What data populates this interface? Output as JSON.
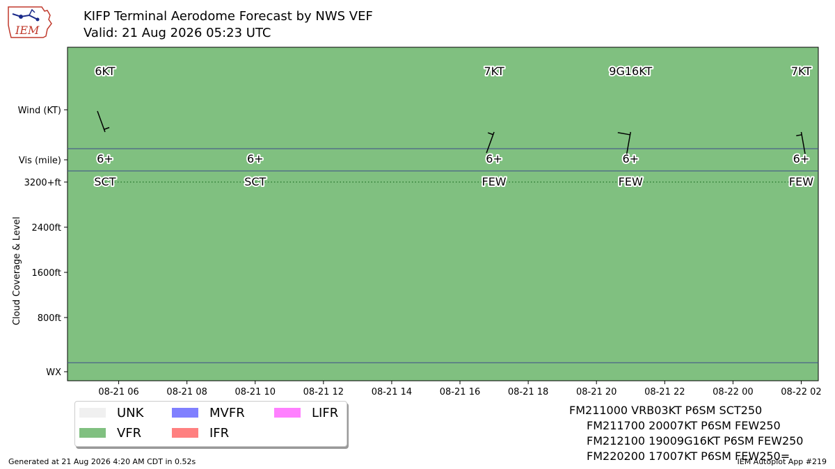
{
  "header": {
    "title": "KIFP Terminal Aerodome Forecast by NWS VEF",
    "valid": "Valid: 21 Aug 2026 05:23 UTC",
    "logo_text": "IEM"
  },
  "chart_data": {
    "type": "timeline",
    "colors": {
      "VFR": "#80c080",
      "UNK": "#f0f0f0",
      "MVFR": "#8080ff",
      "IFR": "#ff8080",
      "LIFR": "#ff80ff",
      "cloud_line": "#2e7d32",
      "separator": "#3b4a8a"
    },
    "ylabel": "Cloud Coverage & Level",
    "row_labels": [
      "Wind (KT)",
      "Vis (mile)",
      "WX"
    ],
    "cloud_ticks": [
      {
        "label": "3200+ft",
        "value": 3200
      },
      {
        "label": "2400ft",
        "value": 2400
      },
      {
        "label": "1600ft",
        "value": 1600
      },
      {
        "label": "800ft",
        "value": 800
      }
    ],
    "x_ticks": [
      {
        "label": "08-21 06",
        "hours": 6
      },
      {
        "label": "08-21 08",
        "hours": 8
      },
      {
        "label": "08-21 10",
        "hours": 10
      },
      {
        "label": "08-21 12",
        "hours": 12
      },
      {
        "label": "08-21 14",
        "hours": 14
      },
      {
        "label": "08-21 16",
        "hours": 16
      },
      {
        "label": "08-21 18",
        "hours": 18
      },
      {
        "label": "08-21 20",
        "hours": 20
      },
      {
        "label": "08-21 22",
        "hours": 22
      },
      {
        "label": "08-22 00",
        "hours": 24
      },
      {
        "label": "08-22 02",
        "hours": 26
      }
    ],
    "xlim_hours": [
      4.5,
      26.5
    ],
    "flight_category": "VFR",
    "forecasts": [
      {
        "time": "08-21 06",
        "hours": 5.6,
        "wind_label": "6KT",
        "wind_dir": 340,
        "wind_speed": 6,
        "vis": "6+",
        "cloud": "SCT",
        "level": 3200
      },
      {
        "time": "08-21 10",
        "hours": 10.0,
        "wind_label": null,
        "wind_dir": null,
        "wind_speed": null,
        "vis": "6+",
        "cloud": "SCT",
        "level": 3200
      },
      {
        "time": "08-21 17",
        "hours": 17.0,
        "wind_label": "7KT",
        "wind_dir": 200,
        "wind_speed": 7,
        "vis": "6+",
        "cloud": "FEW",
        "level": 3200
      },
      {
        "time": "08-21 21",
        "hours": 21.0,
        "wind_label": "9G16KT",
        "wind_dir": 190,
        "wind_speed": 9,
        "vis": "6+",
        "cloud": "FEW",
        "level": 3200
      },
      {
        "time": "08-22 02",
        "hours": 26.0,
        "wind_label": "7KT",
        "wind_dir": 170,
        "wind_speed": 7,
        "vis": "6+",
        "cloud": "FEW",
        "level": 3200
      }
    ]
  },
  "legend": {
    "items": [
      {
        "label": "UNK",
        "color": "#f0f0f0"
      },
      {
        "label": "VFR",
        "color": "#80c080"
      },
      {
        "label": "MVFR",
        "color": "#8080ff"
      },
      {
        "label": "IFR",
        "color": "#ff8080"
      },
      {
        "label": "LIFR",
        "color": "#ff80ff"
      }
    ]
  },
  "taf": {
    "lines": [
      "FM211000 VRB03KT P6SM SCT250",
      "FM211700 20007KT P6SM FEW250",
      "FM212100 19009G16KT P6SM FEW250",
      "FM220200 17007KT P6SM FEW250="
    ]
  },
  "footer": {
    "generated": "Generated at 21 Aug 2026 4:20 AM CDT in 0.52s",
    "app": "IEM Autoplot App #219"
  }
}
